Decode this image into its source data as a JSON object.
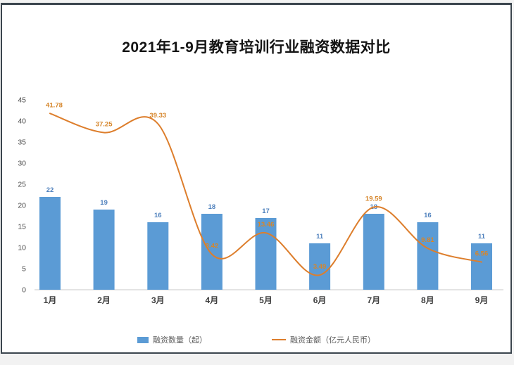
{
  "page": {
    "background_color": "#f2f2f2",
    "frame_border_color": "#3b454e"
  },
  "chart_data": {
    "type": "combo",
    "title": "2021年1-9月教育培训行业融资数据对比",
    "categories": [
      "1月",
      "2月",
      "3月",
      "4月",
      "5月",
      "6月",
      "7月",
      "8月",
      "9月"
    ],
    "series": [
      {
        "name": "融资数量（起）",
        "type": "bar",
        "color": "#5b9bd5",
        "label_color": "#4f81bd",
        "values": [
          22,
          19,
          16,
          18,
          17,
          11,
          18,
          16,
          11
        ]
      },
      {
        "name": "融资金额（亿元人民币）",
        "type": "line",
        "color": "#dd7e2c",
        "label_color": "#d6862b",
        "values": [
          41.78,
          37.25,
          39.33,
          8.42,
          13.46,
          3.49,
          19.59,
          9.81,
          6.56
        ],
        "labels": [
          "41.78",
          "37.25",
          "39.33",
          "8.42",
          "13.46",
          "3.49",
          "19.59",
          "9.81",
          "6.56"
        ]
      }
    ],
    "ylim": [
      0,
      45
    ],
    "yticks": [
      "0",
      "5",
      "10",
      "15",
      "20",
      "25",
      "30",
      "35",
      "40",
      "45"
    ],
    "grid": false,
    "legend_position": "bottom",
    "axis_tick_color": "#4d4d4d",
    "baseline_color": "#c9c9c9"
  }
}
